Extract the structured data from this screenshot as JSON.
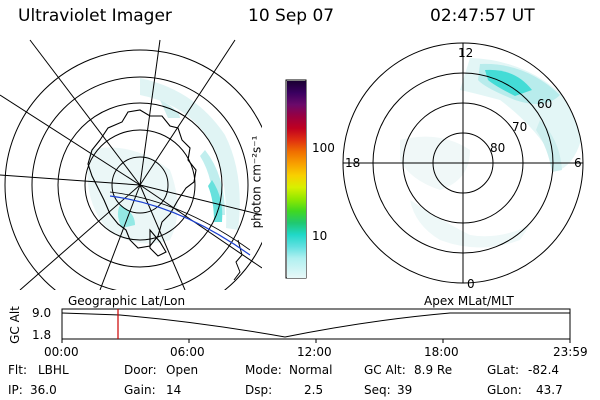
{
  "header": {
    "instrument": "Ultraviolet Imager",
    "date": "10 Sep 07",
    "time": "02:47:57 UT"
  },
  "colorbar": {
    "unit_label": "photon cm⁻²s⁻¹",
    "ticks": [
      "100",
      "10"
    ],
    "colors": [
      "#1a0033",
      "#3a0060",
      "#6a0a6a",
      "#9a0040",
      "#c00020",
      "#e03010",
      "#f07000",
      "#f8a000",
      "#f8d000",
      "#d8f000",
      "#90e800",
      "#40d820",
      "#20c870",
      "#20d8c8",
      "#60e0e0",
      "#b0f0f0",
      "#e8f8f8"
    ]
  },
  "left_map": {
    "projection": "Geographic Lat/Lon"
  },
  "right_map": {
    "projection": "Apex MLat/MLT",
    "mlt_labels": {
      "top": "12",
      "left": "18",
      "right": "6",
      "bottom": "0"
    },
    "lat_labels": [
      "60",
      "70",
      "80"
    ]
  },
  "altitude_plot": {
    "ylabel": "GC Alt",
    "yticks": [
      "9.0",
      "1.8"
    ],
    "xticks": [
      "00:00",
      "06:00",
      "12:00",
      "18:00",
      "23:59"
    ],
    "current_time_marker": "02:47:57",
    "marker_color": "#cc0000"
  },
  "status": {
    "flt_label": "Flt:",
    "flt_value": "LBHL",
    "ip_label": "IP:",
    "ip_value": "36.0",
    "door_label": "Door:",
    "door_value": "Open",
    "gain_label": "Gain:",
    "gain_value": "14",
    "mode_label": "Mode:",
    "mode_value": "Normal",
    "dsp_label": "Dsp:",
    "dsp_value": "2.5",
    "gcalt_label": "GC Alt:",
    "gcalt_value": "8.9 Re",
    "seq_label": "Seq:",
    "seq_value": "39",
    "glat_label": "GLat:",
    "glat_value": "-82.4",
    "glon_label": "GLon:",
    "glon_value": "43.7"
  }
}
